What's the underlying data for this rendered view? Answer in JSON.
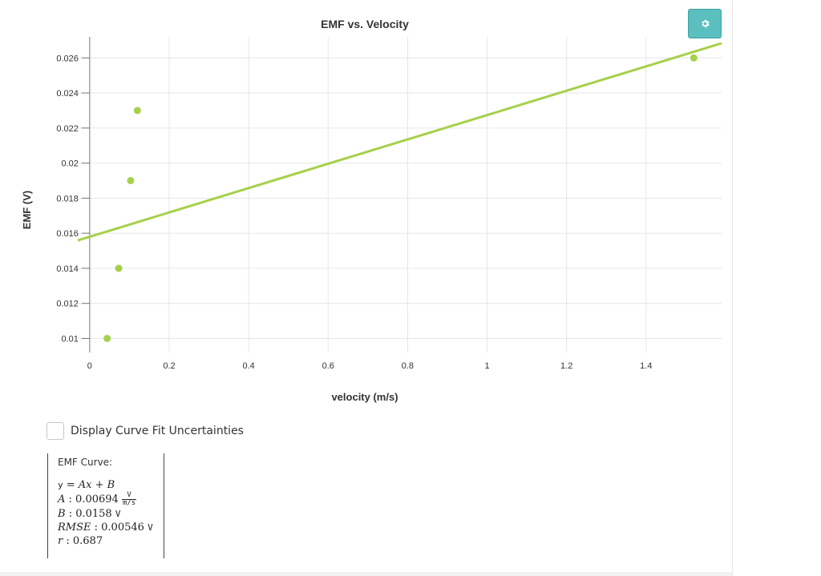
{
  "chart_data": {
    "type": "scatter",
    "title": "EMF vs. Velocity",
    "xlabel": "velocity (m/s)",
    "ylabel": "EMF (V)",
    "xlim": [
      -0.03,
      1.59
    ],
    "ylim": [
      0.0092,
      0.0272
    ],
    "xticks": [
      0,
      0.2,
      0.4,
      0.6,
      0.8,
      1,
      1.2,
      1.4
    ],
    "xtick_labels": [
      "0",
      "0.2",
      "0.4",
      "0.6",
      "0.8",
      "1",
      "1.2",
      "1.4"
    ],
    "yticks": [
      0.01,
      0.012,
      0.014,
      0.016,
      0.018,
      0.02,
      0.022,
      0.024,
      0.026
    ],
    "ytick_labels": [
      "0.01",
      "0.012",
      "0.014",
      "0.016",
      "0.018",
      "0.02",
      "0.022",
      "0.024",
      "0.026"
    ],
    "grid": true,
    "series": [
      {
        "x": [
          0.044,
          0.073,
          0.103,
          0.12,
          1.52
        ],
        "y": [
          0.01,
          0.014,
          0.019,
          0.023,
          0.026
        ],
        "color": "#a6d04a"
      }
    ],
    "fit_line": {
      "slope": 0.00694,
      "intercept": 0.0158,
      "color": "#a6d04a"
    }
  },
  "controls": {
    "settings_icon": "gear-icon",
    "uncertainties_checked": false,
    "uncertainties_label": "Display Curve Fit Uncertainties"
  },
  "fit": {
    "title": "EMF Curve:",
    "equation_y": "y",
    "equation_rhs": "Ax + B",
    "a_name": "A",
    "a_value": "0.00694",
    "a_unit_num": "V",
    "a_unit_den": "m/s",
    "b_name": "B",
    "b_value": "0.0158",
    "b_unit": "V",
    "rmse_name": "RMSE",
    "rmse_value": "0.00546",
    "rmse_unit": "V",
    "r_name": "r",
    "r_value": "0.687"
  }
}
